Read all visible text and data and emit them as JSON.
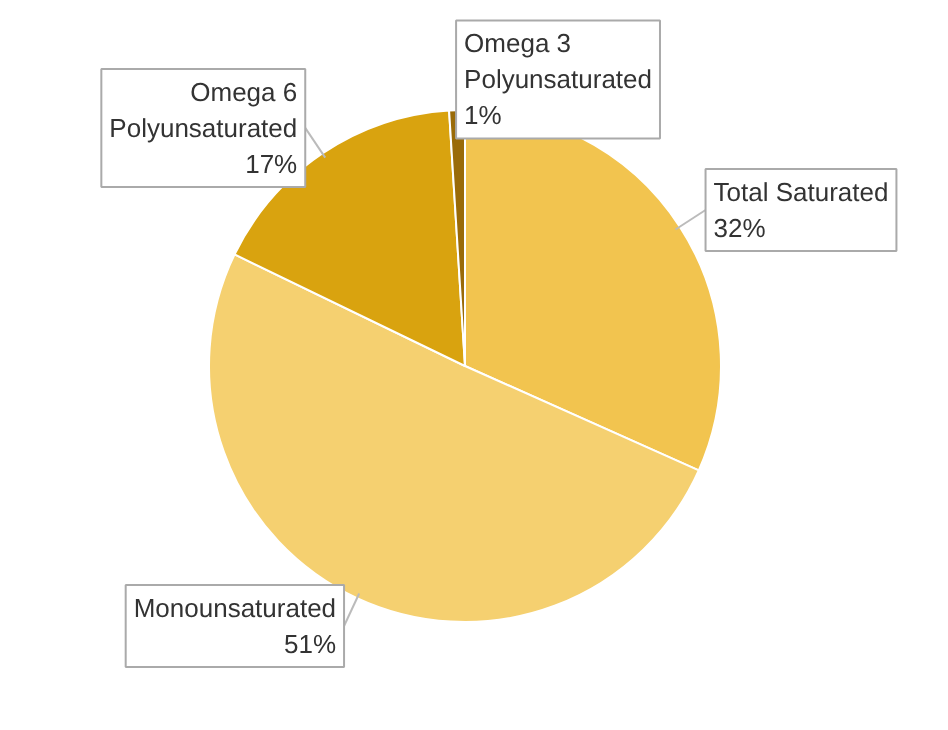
{
  "chart_data": {
    "type": "pie",
    "categories": [
      "Total Saturated",
      "Monounsaturated",
      "Omega 6 Polyunsaturated",
      "Omega 3 Polyunsaturated"
    ],
    "values": [
      32,
      51,
      17,
      1
    ],
    "value_labels": [
      "32%",
      "51%",
      "17%",
      "1%"
    ],
    "colors": [
      "#f2c44f",
      "#f5d070",
      "#d9a30f",
      "#9a6b08"
    ]
  }
}
